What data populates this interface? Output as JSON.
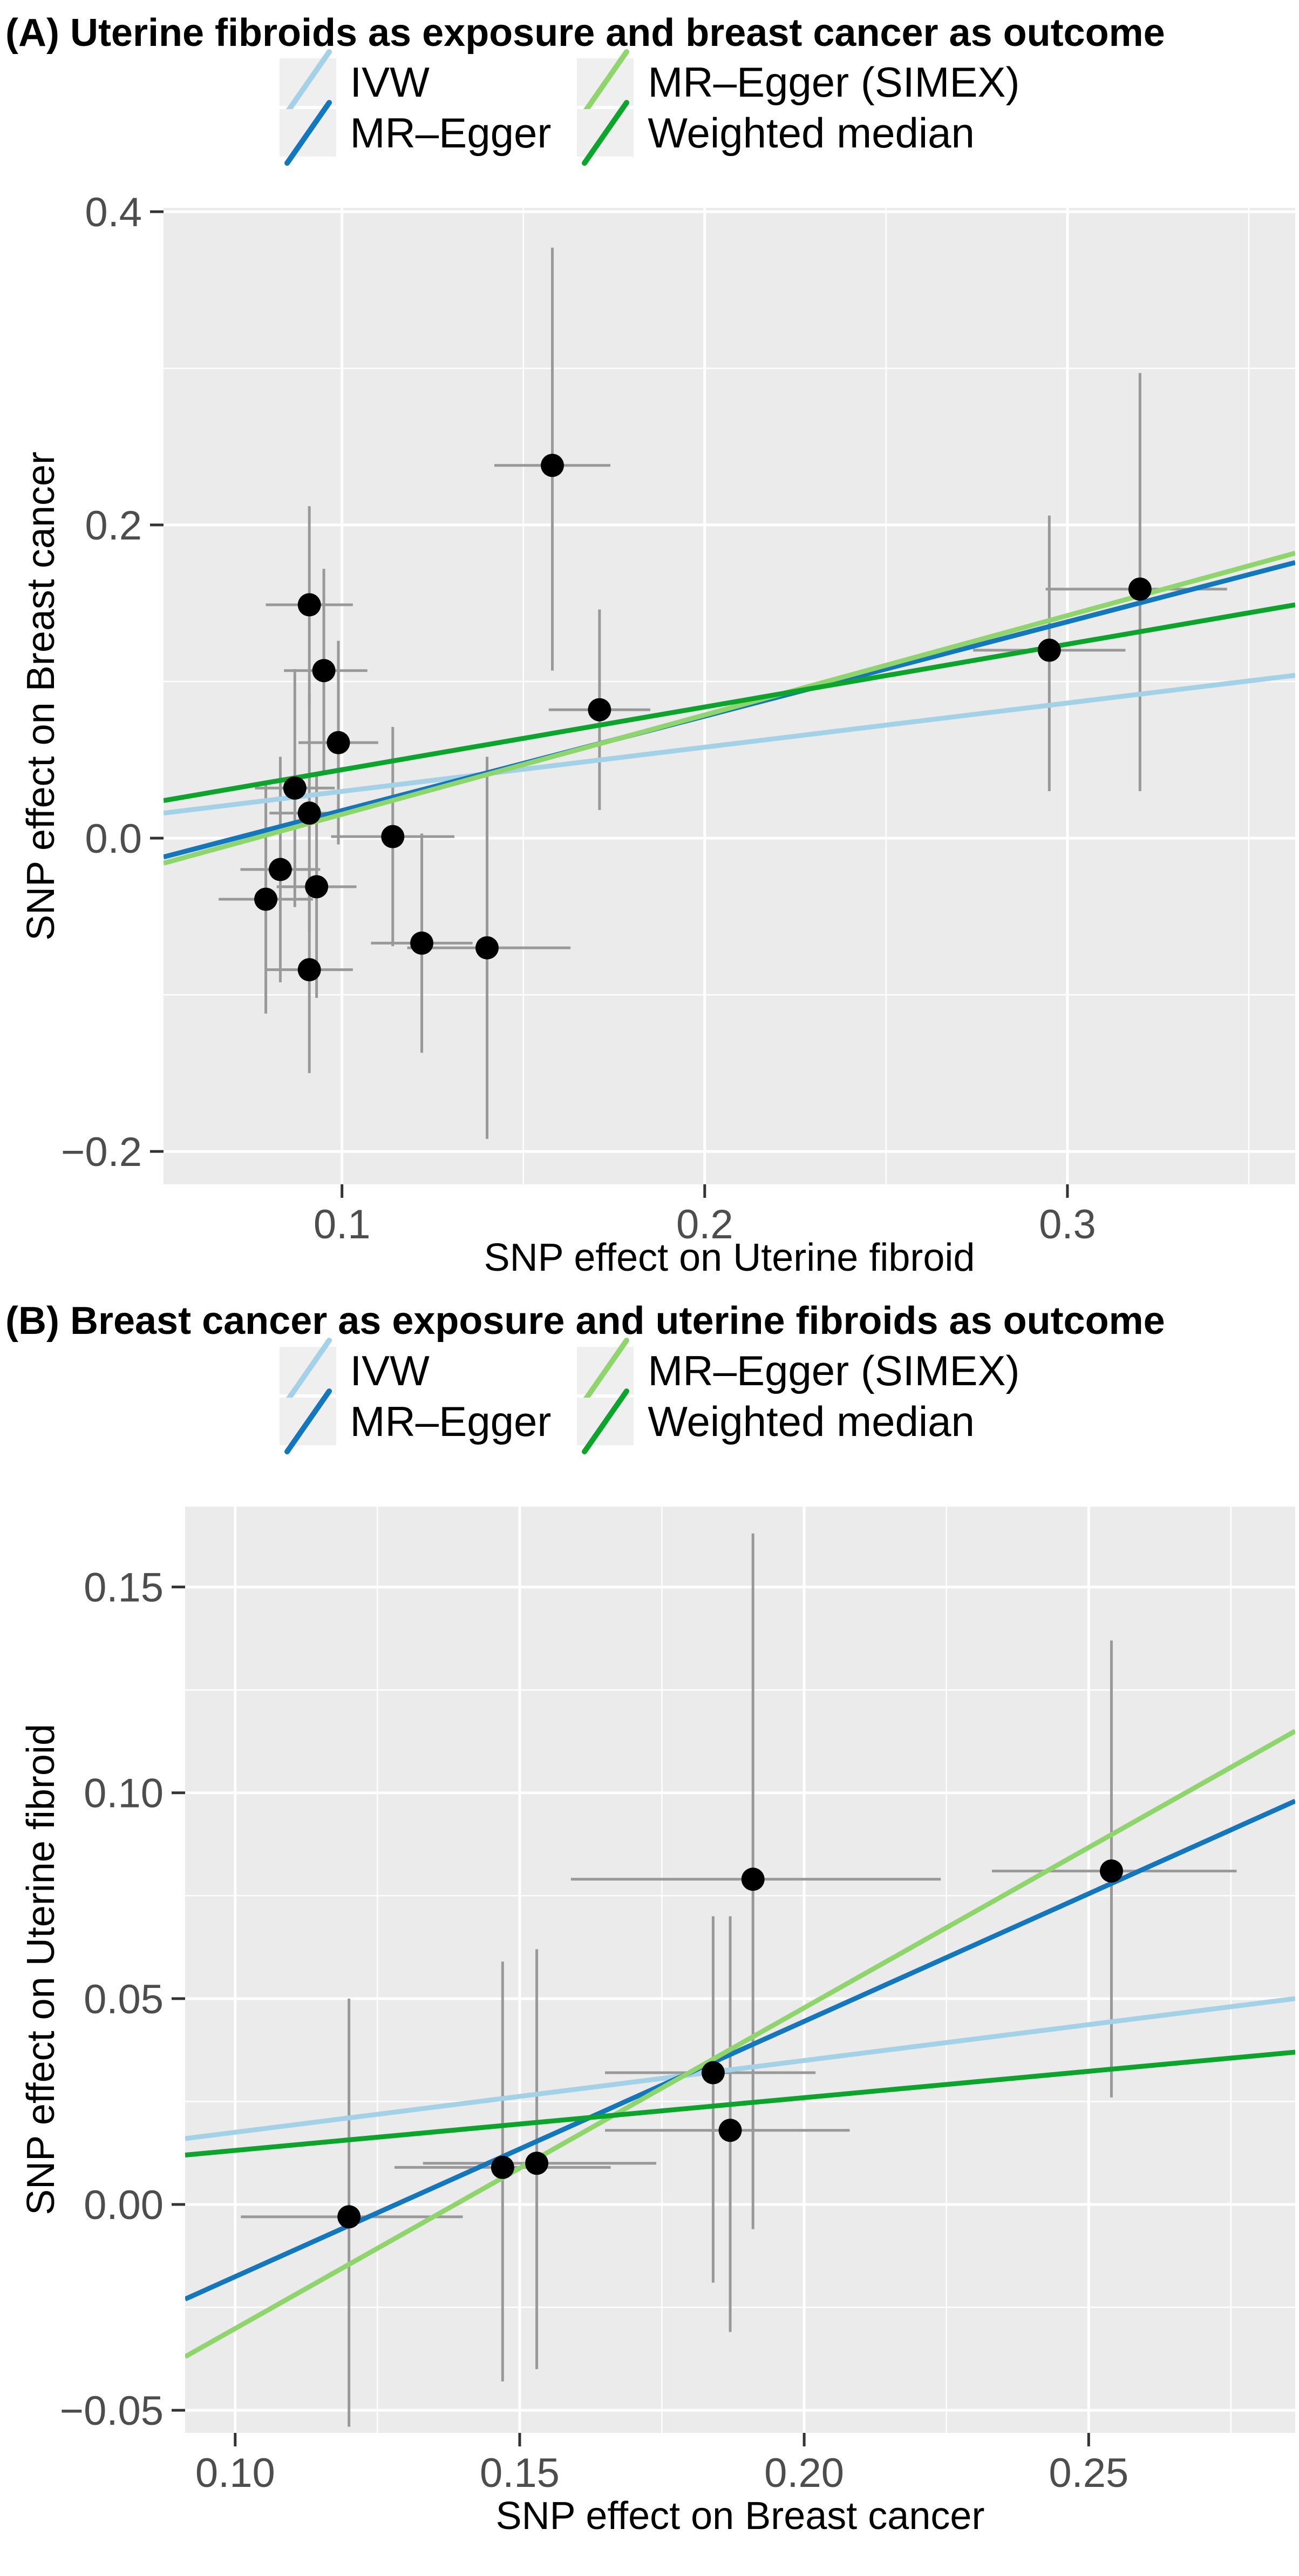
{
  "colors": {
    "panel_bg": "#ebebeb",
    "grid": "#ffffff",
    "error_bar": "#999999",
    "point": "#000000",
    "tick_mark": "#333333",
    "tick_text": "#4d4d4d",
    "legend_key_bg": "#efefef",
    "ivw": "#a3d2e8",
    "mr_egger": "#1377bd",
    "mr_egger_simex": "#8ed66b",
    "weighted_median": "#0ca52c"
  },
  "legend": {
    "items": [
      {
        "label": "IVW",
        "color": "#a3d2e8"
      },
      {
        "label": "MR–Egger",
        "color": "#1377bd"
      },
      {
        "label": "MR–Egger (SIMEX)",
        "color": "#8ed66b"
      },
      {
        "label": "Weighted median",
        "color": "#0ca52c"
      }
    ]
  },
  "chart_data": [
    {
      "type": "scatter",
      "title": "(A) Uterine fibroids as exposure and breast cancer as outcome",
      "xlabel": "SNP effect on Uterine fibroid",
      "ylabel": "SNP effect on Breast cancer",
      "xlim": [
        0.0508,
        0.3628
      ],
      "ylim": [
        -0.221,
        0.4024
      ],
      "grid": true,
      "legend_position": "top",
      "x_ticks": [
        {
          "v": 0.1,
          "label": "0.1"
        },
        {
          "v": 0.2,
          "label": "0.2"
        },
        {
          "v": 0.3,
          "label": "0.3"
        }
      ],
      "y_ticks": [
        {
          "v": 0.4,
          "label": "0.4"
        },
        {
          "v": 0.2,
          "label": "0.2"
        },
        {
          "v": 0.0,
          "label": "0.0"
        },
        {
          "v": -0.2,
          "label": "−0.2"
        }
      ],
      "x_minor": [
        0.15,
        0.25,
        0.35
      ],
      "y_minor": [
        0.3,
        0.1,
        -0.1
      ],
      "points": [
        {
          "x": 0.158,
          "y": 0.238,
          "xlo": 0.142,
          "xhi": 0.174,
          "ylo": 0.107,
          "yhi": 0.377
        },
        {
          "x": 0.32,
          "y": 0.159,
          "xlo": 0.294,
          "xhi": 0.344,
          "ylo": 0.03,
          "yhi": 0.297
        },
        {
          "x": 0.091,
          "y": 0.149,
          "xlo": 0.079,
          "xhi": 0.103,
          "ylo": 0.085,
          "yhi": 0.212
        },
        {
          "x": 0.295,
          "y": 0.12,
          "xlo": 0.274,
          "xhi": 0.316,
          "ylo": 0.03,
          "yhi": 0.206
        },
        {
          "x": 0.095,
          "y": 0.107,
          "xlo": 0.084,
          "xhi": 0.107,
          "ylo": 0.043,
          "yhi": 0.172
        },
        {
          "x": 0.171,
          "y": 0.082,
          "xlo": 0.157,
          "xhi": 0.185,
          "ylo": 0.018,
          "yhi": 0.146
        },
        {
          "x": 0.099,
          "y": 0.061,
          "xlo": 0.088,
          "xhi": 0.11,
          "ylo": -0.004,
          "yhi": 0.126
        },
        {
          "x": 0.087,
          "y": 0.032,
          "xlo": 0.076,
          "xhi": 0.098,
          "ylo": -0.044,
          "yhi": 0.108
        },
        {
          "x": 0.091,
          "y": 0.016,
          "xlo": 0.08,
          "xhi": 0.102,
          "ylo": -0.06,
          "yhi": 0.092
        },
        {
          "x": 0.114,
          "y": 0.001,
          "xlo": 0.097,
          "xhi": 0.131,
          "ylo": -0.069,
          "yhi": 0.071
        },
        {
          "x": 0.083,
          "y": -0.02,
          "xlo": 0.072,
          "xhi": 0.094,
          "ylo": -0.092,
          "yhi": 0.052
        },
        {
          "x": 0.093,
          "y": -0.031,
          "xlo": 0.082,
          "xhi": 0.104,
          "ylo": -0.102,
          "yhi": 0.04
        },
        {
          "x": 0.079,
          "y": -0.039,
          "xlo": 0.066,
          "xhi": 0.092,
          "ylo": -0.112,
          "yhi": 0.034
        },
        {
          "x": 0.122,
          "y": -0.067,
          "xlo": 0.108,
          "xhi": 0.136,
          "ylo": -0.137,
          "yhi": 0.003
        },
        {
          "x": 0.14,
          "y": -0.07,
          "xlo": 0.118,
          "xhi": 0.163,
          "ylo": -0.192,
          "yhi": 0.052
        },
        {
          "x": 0.091,
          "y": -0.084,
          "xlo": 0.079,
          "xhi": 0.103,
          "ylo": -0.15,
          "yhi": -0.018
        }
      ],
      "lines": [
        {
          "name": "IVW",
          "color": "#a3d2e8",
          "x": [
            0.0508,
            0.3628
          ],
          "y": [
            0.016,
            0.104
          ]
        },
        {
          "name": "MR–Egger",
          "color": "#1377bd",
          "x": [
            0.0508,
            0.3628
          ],
          "y": [
            -0.012,
            0.176
          ]
        },
        {
          "name": "MR–Egger (SIMEX)",
          "color": "#8ed66b",
          "x": [
            0.0508,
            0.3628
          ],
          "y": [
            -0.016,
            0.182
          ]
        },
        {
          "name": "Weighted median",
          "color": "#0ca52c",
          "x": [
            0.0508,
            0.3628
          ],
          "y": [
            0.024,
            0.149
          ]
        }
      ]
    },
    {
      "type": "scatter",
      "title": "(B) Breast cancer as exposure and uterine fibroids as outcome",
      "xlabel": "SNP effect on Breast cancer",
      "ylabel": "SNP effect on Uterine fibroid",
      "xlim": [
        0.0912,
        0.2863
      ],
      "ylim": [
        -0.0555,
        0.1695
      ],
      "grid": true,
      "legend_position": "top",
      "x_ticks": [
        {
          "v": 0.1,
          "label": "0.10"
        },
        {
          "v": 0.15,
          "label": "0.15"
        },
        {
          "v": 0.2,
          "label": "0.20"
        },
        {
          "v": 0.25,
          "label": "0.25"
        }
      ],
      "y_ticks": [
        {
          "v": 0.15,
          "label": "0.15"
        },
        {
          "v": 0.1,
          "label": "0.10"
        },
        {
          "v": 0.05,
          "label": "0.05"
        },
        {
          "v": 0.0,
          "label": "0.00"
        },
        {
          "v": -0.05,
          "label": "−0.05"
        }
      ],
      "x_minor": [
        0.125,
        0.175,
        0.225,
        0.275
      ],
      "y_minor": [
        0.125,
        0.075,
        0.025,
        -0.025
      ],
      "points": [
        {
          "x": 0.191,
          "y": 0.079,
          "xlo": 0.159,
          "xhi": 0.224,
          "ylo": -0.006,
          "yhi": 0.163
        },
        {
          "x": 0.254,
          "y": 0.081,
          "xlo": 0.233,
          "xhi": 0.276,
          "ylo": 0.026,
          "yhi": 0.137
        },
        {
          "x": 0.184,
          "y": 0.032,
          "xlo": 0.165,
          "xhi": 0.202,
          "ylo": -0.019,
          "yhi": 0.07
        },
        {
          "x": 0.187,
          "y": 0.018,
          "xlo": 0.165,
          "xhi": 0.208,
          "ylo": -0.031,
          "yhi": 0.07
        },
        {
          "x": 0.147,
          "y": 0.009,
          "xlo": 0.128,
          "xhi": 0.166,
          "ylo": -0.043,
          "yhi": 0.059
        },
        {
          "x": 0.153,
          "y": 0.01,
          "xlo": 0.133,
          "xhi": 0.174,
          "ylo": -0.04,
          "yhi": 0.062
        },
        {
          "x": 0.12,
          "y": -0.003,
          "xlo": 0.101,
          "xhi": 0.14,
          "ylo": -0.054,
          "yhi": 0.05
        }
      ],
      "lines": [
        {
          "name": "IVW",
          "color": "#a3d2e8",
          "x": [
            0.0912,
            0.2863
          ],
          "y": [
            0.016,
            0.05
          ]
        },
        {
          "name": "MR–Egger",
          "color": "#1377bd",
          "x": [
            0.0912,
            0.2863
          ],
          "y": [
            -0.023,
            0.098
          ]
        },
        {
          "name": "MR–Egger (SIMEX)",
          "color": "#8ed66b",
          "x": [
            0.0912,
            0.2863
          ],
          "y": [
            -0.037,
            0.115
          ]
        },
        {
          "name": "Weighted median",
          "color": "#0ca52c",
          "x": [
            0.0912,
            0.2863
          ],
          "y": [
            0.012,
            0.037
          ]
        }
      ]
    }
  ]
}
